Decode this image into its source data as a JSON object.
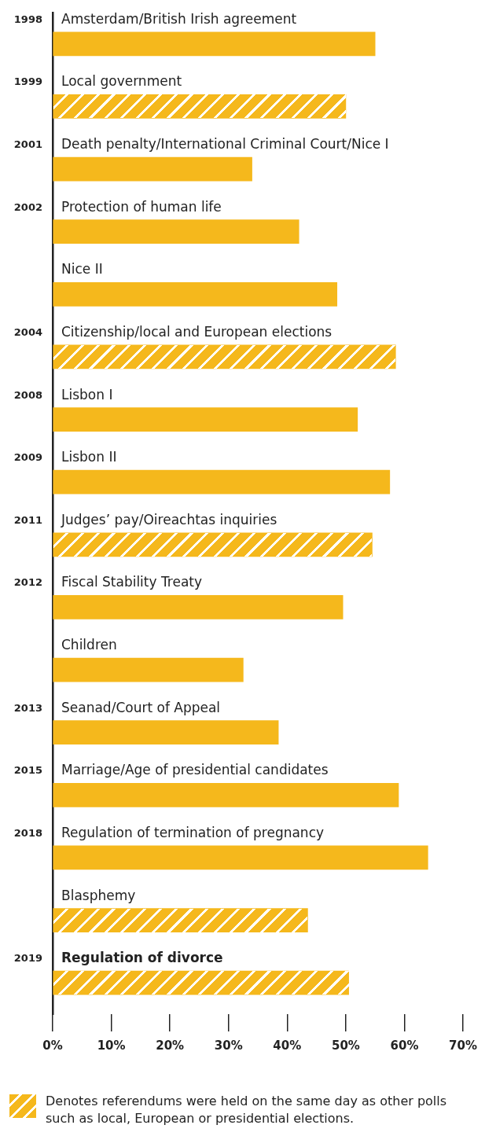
{
  "chart_data": {
    "type": "bar",
    "orientation": "horizontal",
    "stacked": true,
    "categories": [
      "Amsterdam/British Irish agreement",
      "Local government",
      "Death penalty/International Criminal Court/Nice I",
      "Protection of human life",
      "Nice II",
      "Citizenship/local and European elections",
      "Lisbon I",
      "Lisbon II",
      "Judges’ pay/Oireachtas inquiries",
      "Fiscal Stability Treaty",
      "Children",
      "Seanad/Court of Appeal",
      "Marriage/Age of presidential candidates",
      "Regulation of termination of pregnancy",
      "Blasphemy",
      "Regulation of divorce"
    ],
    "series": [
      {
        "color": "#f5b81c",
        "values": [
          55,
          null,
          34,
          42,
          48.5,
          null,
          52,
          57.5,
          null,
          49.5,
          32.5,
          38.5,
          59,
          64,
          null,
          null
        ]
      },
      {
        "name": "Denotes referendums were held on the same day as other polls such as local, European or presidential elections.",
        "color": "#f5b81c",
        "values": [
          null,
          50,
          null,
          null,
          null,
          58.5,
          null,
          null,
          54.5,
          null,
          null,
          null,
          null,
          null,
          43.5,
          50.5
        ]
      }
    ],
    "xlim": [
      0,
      70
    ],
    "xticks": [
      {
        "value": 0,
        "label": "0%"
      },
      {
        "value": 10,
        "label": "10%"
      },
      {
        "value": 20,
        "label": "20%"
      },
      {
        "value": 30,
        "label": "30%"
      },
      {
        "value": 40,
        "label": "40%"
      },
      {
        "value": 50,
        "label": "50%"
      },
      {
        "value": 60,
        "label": "60%"
      },
      {
        "value": 70,
        "label": "70%"
      }
    ],
    "legend": "bottom",
    "annotations": [
      "1998",
      "1999",
      "2001",
      "2002",
      "2004",
      "2008",
      "2009",
      "2011",
      "2012",
      "2013",
      "2015",
      "2018",
      "2019"
    ]
  }
}
